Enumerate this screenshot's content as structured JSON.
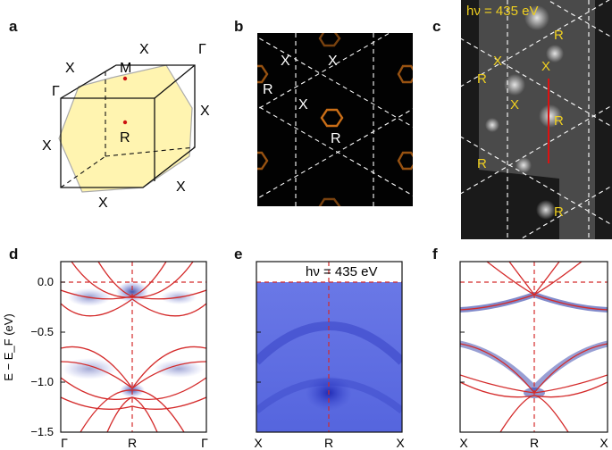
{
  "panels": {
    "a": {
      "letter": "a",
      "labels": {
        "x_top": "X",
        "gamma_top": "Γ",
        "x_left_top": "X",
        "gamma_left": "Γ",
        "m": "M",
        "r": "R",
        "x_right": "X",
        "x_left": "X",
        "x_right_low": "X",
        "x_bottom": "X"
      }
    },
    "b": {
      "letter": "b",
      "labels": {
        "x1": "X",
        "x2": "X",
        "x3": "X",
        "r1": "R",
        "r2": "R"
      }
    },
    "c": {
      "letter": "c",
      "photon_energy": "hν = 435 eV",
      "labels": {
        "r1": "R",
        "x1": "X",
        "x2": "X",
        "r2": "R",
        "x3": "X",
        "r3": "R",
        "r4": "R",
        "r5": "R"
      }
    },
    "d": {
      "letter": "d",
      "ylabel": "E − E_F (eV)",
      "yticks": [
        "0.0",
        "−0.5",
        "−1.0",
        "−1.5"
      ],
      "xticks": [
        "Γ",
        "R",
        "Γ"
      ]
    },
    "e": {
      "letter": "e",
      "photon_energy": "hν = 435 eV",
      "xticks": [
        "X",
        "R",
        "X"
      ]
    },
    "f": {
      "letter": "f",
      "xticks": [
        "X",
        "R",
        "X"
      ]
    }
  },
  "colors": {
    "band": "#d42a2a",
    "arpes": "#2233cc",
    "fermi_surface": "#e07a1a",
    "zone_fill": "#fff4b0"
  }
}
